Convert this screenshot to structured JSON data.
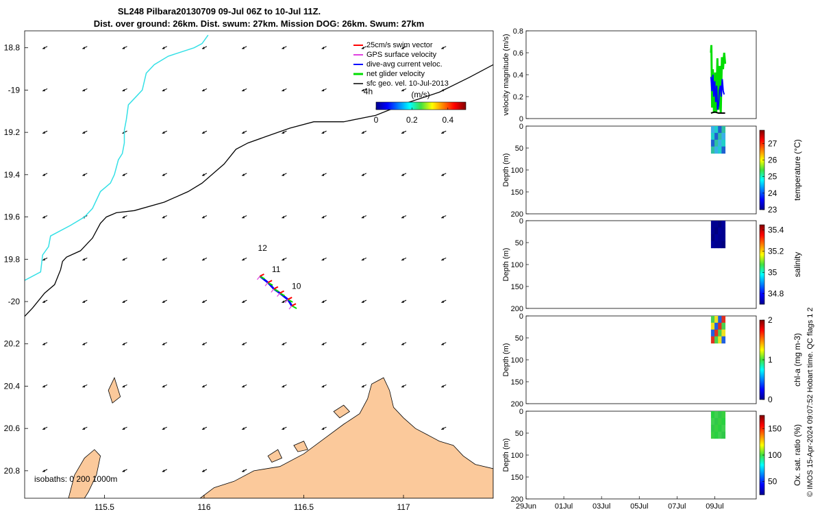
{
  "title": {
    "line1": "SL248 Pilbara20130709 09-Jul 06Z to 10-Jul 11Z.",
    "line2": "Dist. over ground: 26km. Dist. swum: 27km. Mission DOG: 26km. Swum: 27km"
  },
  "footer": "© IMOS 15-Apr-2024 09:07:52 Hobart time. QC flags 1  2",
  "colors": {
    "land": "#fbc99b",
    "coast": "#000000",
    "isobath_shallow": "#33e0e6",
    "isobath_deep": "#000000",
    "swim": "#ff0000",
    "gps": "#e040e0",
    "current": "#0000ff",
    "net": "#00dd00",
    "geo": "#000000"
  },
  "chart_data": [
    {
      "type": "map",
      "name": "track map",
      "xlim": [
        115.1,
        117.45
      ],
      "ylim": [
        -20.93,
        -18.72
      ],
      "xticks": [
        115.5,
        116,
        116.5,
        117
      ],
      "xtick_labels": [
        "115.5",
        "116",
        "116.5",
        "117"
      ],
      "yticks": [
        -18.8,
        -19,
        -19.2,
        -19.4,
        -19.6,
        -19.8,
        -20,
        -20.2,
        -20.4,
        -20.6,
        -20.8
      ],
      "ytick_labels": [
        "18.8",
        "-19",
        "19.2",
        "19.4",
        "19.6",
        "19.8",
        "-20",
        "20.2",
        "20.4",
        "20.6",
        "20.8"
      ],
      "legend": [
        {
          "key": "swim",
          "label": "25cm/s swim vector"
        },
        {
          "key": "gps",
          "label": "GPS surface velocity"
        },
        {
          "key": "current",
          "label": "dive-avg current veloc."
        },
        {
          "key": "net",
          "label": "net glider velocity"
        },
        {
          "key": "geo",
          "label": "sfc geo. vel. 10-Jul-2013"
        }
      ],
      "legend_position": "top-right",
      "time_labels": [
        {
          "text": "4h",
          "lon": 116.8,
          "lat": -19.02
        },
        {
          "text": "12",
          "lon": 116.27,
          "lat": -19.76
        },
        {
          "text": "11",
          "lon": 116.34,
          "lat": -19.86
        },
        {
          "text": "10",
          "lon": 116.44,
          "lat": -19.94
        }
      ],
      "colorbar": {
        "label": "(m/s)",
        "range": [
          0,
          0.5
        ],
        "ticks": [
          0,
          0.2,
          0.4
        ],
        "tick_labels": [
          "0",
          "0.2",
          "0.4"
        ]
      },
      "isobath_label": "isobaths: 0   200  1000m",
      "isobath_200": [
        [
          115.1,
          -19.9
        ],
        [
          115.18,
          -19.86
        ],
        [
          115.19,
          -19.78
        ],
        [
          115.22,
          -19.74
        ],
        [
          115.23,
          -19.69
        ],
        [
          115.33,
          -19.64
        ],
        [
          115.4,
          -19.6
        ],
        [
          115.44,
          -19.56
        ],
        [
          115.48,
          -19.48
        ],
        [
          115.53,
          -19.44
        ],
        [
          115.55,
          -19.4
        ],
        [
          115.57,
          -19.33
        ],
        [
          115.59,
          -19.3
        ],
        [
          115.6,
          -19.25
        ],
        [
          115.6,
          -19.19
        ],
        [
          115.61,
          -19.14
        ],
        [
          115.62,
          -19.07
        ],
        [
          115.66,
          -19.03
        ],
        [
          115.69,
          -19.0
        ],
        [
          115.71,
          -18.92
        ],
        [
          115.75,
          -18.88
        ],
        [
          115.82,
          -18.84
        ],
        [
          115.95,
          -18.8
        ],
        [
          115.99,
          -18.78
        ],
        [
          116.02,
          -18.74
        ]
      ],
      "isobath_1000": [
        [
          115.1,
          -20.07
        ],
        [
          115.14,
          -20.03
        ],
        [
          115.2,
          -19.96
        ],
        [
          115.25,
          -19.92
        ],
        [
          115.28,
          -19.85
        ],
        [
          115.29,
          -19.81
        ],
        [
          115.31,
          -19.79
        ],
        [
          115.38,
          -19.76
        ],
        [
          115.44,
          -19.7
        ],
        [
          115.48,
          -19.63
        ],
        [
          115.51,
          -19.6
        ],
        [
          115.56,
          -19.58
        ],
        [
          115.65,
          -19.57
        ],
        [
          115.8,
          -19.53
        ],
        [
          115.92,
          -19.48
        ],
        [
          115.99,
          -19.44
        ],
        [
          116.1,
          -19.35
        ],
        [
          116.16,
          -19.28
        ],
        [
          116.22,
          -19.25
        ],
        [
          116.31,
          -19.22
        ],
        [
          116.43,
          -19.18
        ],
        [
          116.55,
          -19.15
        ],
        [
          116.7,
          -19.15
        ],
        [
          116.86,
          -19.12
        ],
        [
          117.02,
          -19.06
        ],
        [
          117.18,
          -19.01
        ],
        [
          117.33,
          -18.94
        ],
        [
          117.45,
          -18.88
        ]
      ],
      "land_mainland": [
        [
          115.98,
          -20.93
        ],
        [
          116.05,
          -20.88
        ],
        [
          116.15,
          -20.85
        ],
        [
          116.25,
          -20.8
        ],
        [
          116.38,
          -20.78
        ],
        [
          116.5,
          -20.72
        ],
        [
          116.6,
          -20.65
        ],
        [
          116.7,
          -20.58
        ],
        [
          116.78,
          -20.53
        ],
        [
          116.82,
          -20.46
        ],
        [
          116.84,
          -20.39
        ],
        [
          116.9,
          -20.36
        ],
        [
          116.93,
          -20.42
        ],
        [
          116.95,
          -20.5
        ],
        [
          117.0,
          -20.55
        ],
        [
          117.06,
          -20.6
        ],
        [
          117.12,
          -20.63
        ],
        [
          117.18,
          -20.66
        ],
        [
          117.25,
          -20.68
        ],
        [
          117.3,
          -20.73
        ],
        [
          117.36,
          -20.77
        ],
        [
          117.45,
          -20.79
        ],
        [
          117.45,
          -20.93
        ]
      ],
      "land_islands": [
        [
          [
            115.32,
            -20.93
          ],
          [
            115.35,
            -20.82
          ],
          [
            115.4,
            -20.74
          ],
          [
            115.45,
            -20.7
          ],
          [
            115.48,
            -20.73
          ],
          [
            115.46,
            -20.82
          ],
          [
            115.42,
            -20.9
          ],
          [
            115.4,
            -20.93
          ]
        ],
        [
          [
            115.52,
            -20.42
          ],
          [
            115.55,
            -20.36
          ],
          [
            115.58,
            -20.45
          ],
          [
            115.54,
            -20.48
          ]
        ],
        [
          [
            116.65,
            -20.52
          ],
          [
            116.7,
            -20.49
          ],
          [
            116.73,
            -20.52
          ],
          [
            116.68,
            -20.55
          ]
        ],
        [
          [
            116.45,
            -20.68
          ],
          [
            116.5,
            -20.66
          ],
          [
            116.52,
            -20.7
          ],
          [
            116.47,
            -20.71
          ]
        ],
        [
          [
            116.32,
            -20.73
          ],
          [
            116.37,
            -20.7
          ],
          [
            116.39,
            -20.74
          ],
          [
            116.34,
            -20.76
          ]
        ]
      ],
      "track": [
        [
          116.28,
          -19.88
        ],
        [
          116.32,
          -19.91
        ],
        [
          116.35,
          -19.94
        ],
        [
          116.38,
          -19.96
        ],
        [
          116.42,
          -19.99
        ],
        [
          116.44,
          -20.02
        ]
      ]
    },
    {
      "type": "line",
      "name": "velocity magnitude",
      "ylabel": "velocity magnitude (m/s)",
      "ylim": [
        0,
        0.8
      ],
      "yticks": [
        0,
        0.2,
        0.4,
        0.6,
        0.8
      ],
      "ytick_labels": [
        "0",
        "0.2",
        "0.4",
        "0.6",
        "0.8"
      ],
      "xlim": [
        0,
        12.2
      ],
      "series": [
        {
          "name": "net glider velocity",
          "color": "#00dd00",
          "x": [
            9.8,
            9.82,
            9.86,
            9.9,
            9.96,
            10.02,
            10.08,
            10.14,
            10.2,
            10.26,
            10.32,
            10.38,
            10.44,
            10.5,
            10.55
          ],
          "y": [
            0.6,
            0.67,
            0.1,
            0.45,
            0.05,
            0.42,
            0.06,
            0.55,
            0.08,
            0.48,
            0.05,
            0.56,
            0.45,
            0.6,
            0.5
          ]
        },
        {
          "name": "dive-avg current veloc.",
          "color": "#0000ff",
          "x": [
            9.8,
            9.85,
            9.9,
            9.95,
            10.0,
            10.05,
            10.1,
            10.15,
            10.2,
            10.25,
            10.3,
            10.35,
            10.4,
            10.45,
            10.5
          ],
          "y": [
            0.38,
            0.25,
            0.4,
            0.2,
            0.34,
            0.15,
            0.3,
            0.08,
            0.12,
            0.26,
            0.3,
            0.2,
            0.36,
            0.25,
            0.22
          ]
        },
        {
          "name": "GPS surface velocity",
          "color": "#000000",
          "x": [
            9.8,
            10.0,
            10.2,
            10.4,
            10.55
          ],
          "y": [
            0.05,
            0.06,
            0.05,
            0.05,
            0.05
          ]
        }
      ]
    },
    {
      "type": "heatmap",
      "name": "temperature section",
      "ylabel": "Depth (m)",
      "ylim": [
        0,
        200
      ],
      "yticks": [
        0,
        50,
        100,
        150,
        200
      ],
      "ytick_labels": [
        "0",
        "50",
        "100",
        "150",
        "200"
      ],
      "clabel": "temperature (°C)",
      "crange": [
        23,
        27.8
      ],
      "cticks": [
        23,
        24,
        25,
        26,
        27
      ],
      "ctick_labels": [
        "23",
        "24",
        "25",
        "26",
        "27"
      ],
      "data_x": [
        9.8,
        10.55
      ],
      "data_depth": [
        0,
        62
      ]
    },
    {
      "type": "heatmap",
      "name": "salinity section",
      "ylabel": "Depth (m)",
      "ylim": [
        0,
        200
      ],
      "yticks": [
        0,
        50,
        100,
        150,
        200
      ],
      "ytick_labels": [
        "0",
        "50",
        "100",
        "150",
        "200"
      ],
      "clabel": "salinity",
      "crange": [
        34.7,
        35.45
      ],
      "cticks": [
        34.8,
        35,
        35.2,
        35.4
      ],
      "ctick_labels": [
        "34.8",
        "35",
        "35.2",
        "35.4"
      ],
      "data_x": [
        9.8,
        10.55
      ],
      "data_depth": [
        0,
        62
      ]
    },
    {
      "type": "heatmap",
      "name": "chlorophyll section",
      "ylabel": "Depth (m)",
      "ylim": [
        0,
        200
      ],
      "yticks": [
        0,
        50,
        100,
        150,
        200
      ],
      "ytick_labels": [
        "0",
        "50",
        "100",
        "150",
        "200"
      ],
      "clabel": "chl-a (mg m-3)",
      "crange": [
        0,
        2
      ],
      "cticks": [
        0,
        1,
        2
      ],
      "ctick_labels": [
        "0",
        "1",
        "2"
      ],
      "data_x": [
        9.8,
        10.55
      ],
      "data_depth": [
        0,
        62
      ]
    },
    {
      "type": "heatmap",
      "name": "oxygen saturation section",
      "ylabel": "Depth (m)",
      "ylim": [
        0,
        200
      ],
      "yticks": [
        0,
        50,
        100,
        150,
        200
      ],
      "ytick_labels": [
        "0",
        "50",
        "100",
        "150",
        "200"
      ],
      "clabel": "Ox. sat. ratio (%)",
      "crange": [
        25,
        175
      ],
      "cticks": [
        50,
        100,
        150
      ],
      "ctick_labels": [
        "50",
        "100",
        "150"
      ],
      "data_x": [
        9.8,
        10.55
      ],
      "data_depth": [
        0,
        62
      ],
      "xlim": [
        0,
        12.2
      ],
      "xticks": [
        0,
        2,
        4,
        6,
        8,
        10
      ],
      "xtick_labels": [
        "29Jun",
        "01Jul",
        "03Jul",
        "05Jul",
        "07Jul",
        "09Jul"
      ]
    }
  ]
}
